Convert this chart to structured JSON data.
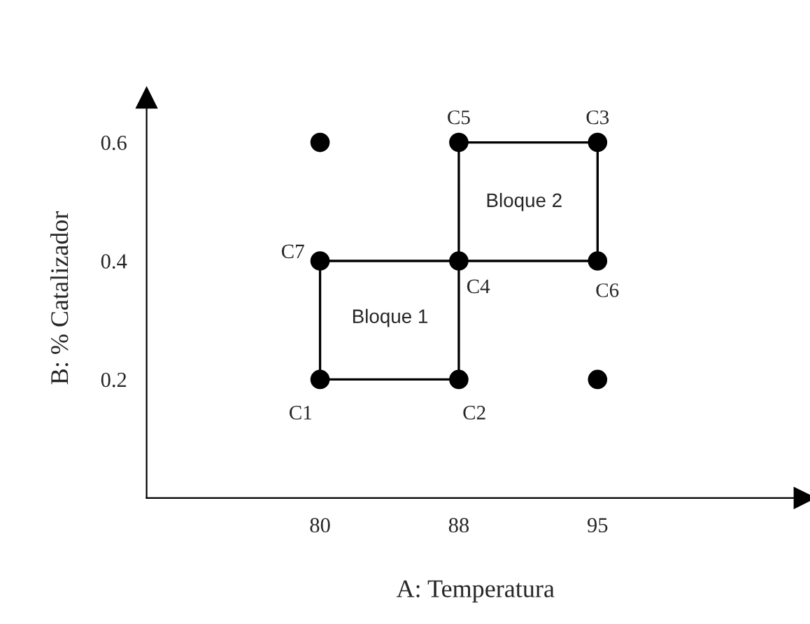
{
  "chart_data": {
    "type": "scatter",
    "xlabel": "A: Temperatura",
    "ylabel": "B: % Catalizador",
    "categories": [
      "80",
      "88",
      "95"
    ],
    "ylim": [
      0,
      0.675
    ],
    "yticks": [
      0.2,
      0.4,
      0.6
    ],
    "grid": false,
    "legend": false,
    "series": [
      {
        "color": "#000000",
        "marker": "circle",
        "x": [
          "80",
          "88",
          "95",
          "80",
          "88",
          "95",
          "80",
          "88",
          "95"
        ],
        "values": [
          0.2,
          0.2,
          0.2,
          0.4,
          0.4,
          0.4,
          0.6,
          0.6,
          0.6
        ]
      },
      {
        "type": "line",
        "color": "#000000",
        "x": [
          "80",
          "80",
          "88"
        ],
        "values": [
          0.4,
          0.2,
          0.2
        ]
      },
      {
        "type": "line",
        "color": "#000000",
        "x": [
          "80",
          "88",
          "88"
        ],
        "values": [
          0.4,
          0.4,
          0.2
        ]
      },
      {
        "type": "line",
        "color": "#000000",
        "x": [
          "88",
          "88",
          "95"
        ],
        "values": [
          0.6,
          0.4,
          0.4
        ]
      },
      {
        "type": "line",
        "color": "#000000",
        "x": [
          "88",
          "95",
          "95"
        ],
        "values": [
          0.6,
          0.6,
          0.4
        ]
      }
    ],
    "annotations": [
      {
        "text": "C1",
        "x": "80",
        "y": 0.2
      },
      {
        "text": "C2",
        "x": "88",
        "y": 0.2
      },
      {
        "text": "C3",
        "x": "95",
        "y": 0.6
      },
      {
        "text": "C4",
        "x": "88",
        "y": 0.4
      },
      {
        "text": "C5",
        "x": "88",
        "y": 0.6
      },
      {
        "text": "C6",
        "x": "95",
        "y": 0.4
      },
      {
        "text": "C7",
        "x": "80",
        "y": 0.4
      },
      "Bloque 1",
      "Bloque 2"
    ]
  }
}
